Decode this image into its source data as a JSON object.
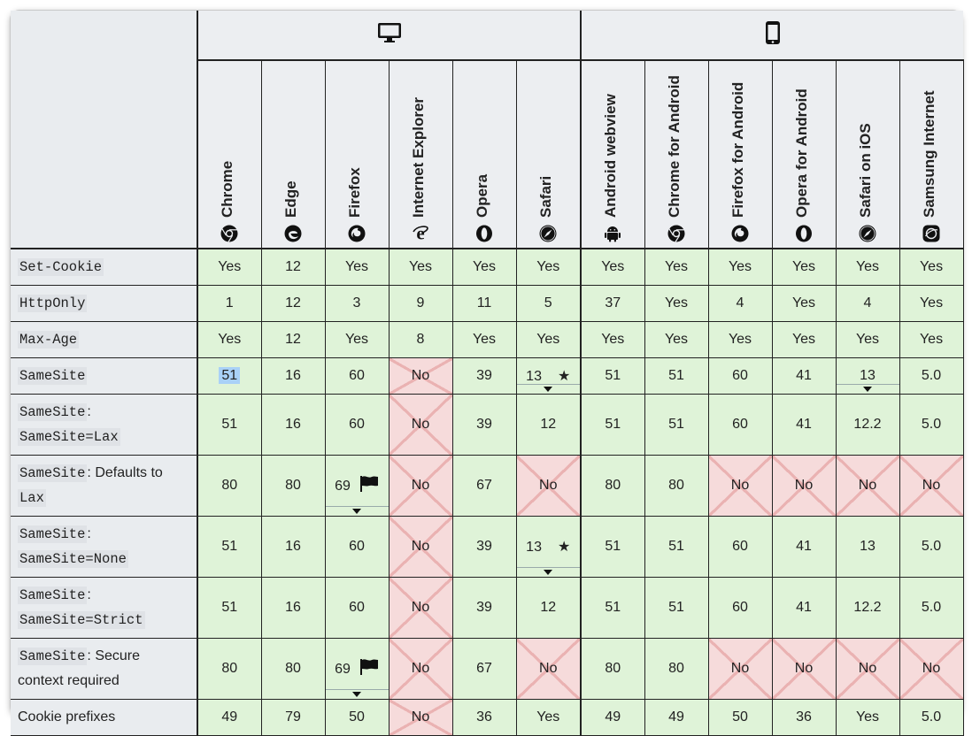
{
  "platforms": [
    {
      "name": "desktop-icon",
      "span": 6
    },
    {
      "name": "mobile-icon",
      "span": 6
    }
  ],
  "browsers": [
    {
      "name": "Chrome",
      "icon": "chrome-icon"
    },
    {
      "name": "Edge",
      "icon": "edge-icon"
    },
    {
      "name": "Firefox",
      "icon": "firefox-icon"
    },
    {
      "name": "Internet Explorer",
      "icon": "ie-icon"
    },
    {
      "name": "Opera",
      "icon": "opera-icon"
    },
    {
      "name": "Safari",
      "icon": "safari-icon"
    },
    {
      "name": "Android webview",
      "icon": "android-icon"
    },
    {
      "name": "Chrome for Android",
      "icon": "chrome-icon"
    },
    {
      "name": "Firefox for Android",
      "icon": "firefox-icon"
    },
    {
      "name": "Opera for Android",
      "icon": "opera-icon"
    },
    {
      "name": "Safari on iOS",
      "icon": "safari-icon"
    },
    {
      "name": "Samsung Internet",
      "icon": "samsung-icon"
    }
  ],
  "features": [
    {
      "parts": [
        {
          "code": "Set-Cookie"
        }
      ],
      "cells": [
        {
          "v": "Yes",
          "s": "y"
        },
        {
          "v": "12",
          "s": "y"
        },
        {
          "v": "Yes",
          "s": "y"
        },
        {
          "v": "Yes",
          "s": "y"
        },
        {
          "v": "Yes",
          "s": "y"
        },
        {
          "v": "Yes",
          "s": "y"
        },
        {
          "v": "Yes",
          "s": "y"
        },
        {
          "v": "Yes",
          "s": "y"
        },
        {
          "v": "Yes",
          "s": "y"
        },
        {
          "v": "Yes",
          "s": "y"
        },
        {
          "v": "Yes",
          "s": "y"
        },
        {
          "v": "Yes",
          "s": "y"
        }
      ]
    },
    {
      "parts": [
        {
          "code": "HttpOnly"
        }
      ],
      "cells": [
        {
          "v": "1",
          "s": "y"
        },
        {
          "v": "12",
          "s": "y"
        },
        {
          "v": "3",
          "s": "y"
        },
        {
          "v": "9",
          "s": "y"
        },
        {
          "v": "11",
          "s": "y"
        },
        {
          "v": "5",
          "s": "y"
        },
        {
          "v": "37",
          "s": "y"
        },
        {
          "v": "Yes",
          "s": "y"
        },
        {
          "v": "4",
          "s": "y"
        },
        {
          "v": "Yes",
          "s": "y"
        },
        {
          "v": "4",
          "s": "y"
        },
        {
          "v": "Yes",
          "s": "y"
        }
      ]
    },
    {
      "parts": [
        {
          "code": "Max-Age"
        }
      ],
      "cells": [
        {
          "v": "Yes",
          "s": "y"
        },
        {
          "v": "12",
          "s": "y"
        },
        {
          "v": "Yes",
          "s": "y"
        },
        {
          "v": "8",
          "s": "y"
        },
        {
          "v": "Yes",
          "s": "y"
        },
        {
          "v": "Yes",
          "s": "y"
        },
        {
          "v": "Yes",
          "s": "y"
        },
        {
          "v": "Yes",
          "s": "y"
        },
        {
          "v": "Yes",
          "s": "y"
        },
        {
          "v": "Yes",
          "s": "y"
        },
        {
          "v": "Yes",
          "s": "y"
        },
        {
          "v": "Yes",
          "s": "y"
        }
      ]
    },
    {
      "parts": [
        {
          "code": "SameSite"
        }
      ],
      "cells": [
        {
          "v": "51",
          "s": "y",
          "hl": true
        },
        {
          "v": "16",
          "s": "y"
        },
        {
          "v": "60",
          "s": "y"
        },
        {
          "v": "No",
          "s": "n"
        },
        {
          "v": "39",
          "s": "y"
        },
        {
          "v": "13",
          "s": "y",
          "note": "★",
          "drop": true
        },
        {
          "v": "51",
          "s": "y"
        },
        {
          "v": "51",
          "s": "y"
        },
        {
          "v": "60",
          "s": "y"
        },
        {
          "v": "41",
          "s": "y"
        },
        {
          "v": "13",
          "s": "y",
          "drop": true
        },
        {
          "v": "5.0",
          "s": "y"
        }
      ]
    },
    {
      "parts": [
        {
          "code": "SameSite"
        },
        {
          "text": ": "
        },
        {
          "code": "SameSite=Lax"
        }
      ],
      "cells": [
        {
          "v": "51",
          "s": "y"
        },
        {
          "v": "16",
          "s": "y"
        },
        {
          "v": "60",
          "s": "y"
        },
        {
          "v": "No",
          "s": "n"
        },
        {
          "v": "39",
          "s": "y"
        },
        {
          "v": "12",
          "s": "y"
        },
        {
          "v": "51",
          "s": "y"
        },
        {
          "v": "51",
          "s": "y"
        },
        {
          "v": "60",
          "s": "y"
        },
        {
          "v": "41",
          "s": "y"
        },
        {
          "v": "12.2",
          "s": "y"
        },
        {
          "v": "5.0",
          "s": "y"
        }
      ]
    },
    {
      "parts": [
        {
          "code": "SameSite"
        },
        {
          "text": ": Defaults to "
        },
        {
          "code": "Lax"
        }
      ],
      "cells": [
        {
          "v": "80",
          "s": "y"
        },
        {
          "v": "80",
          "s": "y"
        },
        {
          "v": "69",
          "s": "y",
          "flag": true,
          "drop": true
        },
        {
          "v": "No",
          "s": "n"
        },
        {
          "v": "67",
          "s": "y"
        },
        {
          "v": "No",
          "s": "n"
        },
        {
          "v": "80",
          "s": "y"
        },
        {
          "v": "80",
          "s": "y"
        },
        {
          "v": "No",
          "s": "n"
        },
        {
          "v": "No",
          "s": "n"
        },
        {
          "v": "No",
          "s": "n"
        },
        {
          "v": "No",
          "s": "n"
        }
      ]
    },
    {
      "parts": [
        {
          "code": "SameSite"
        },
        {
          "text": ": "
        },
        {
          "code": "SameSite=None"
        }
      ],
      "cells": [
        {
          "v": "51",
          "s": "y"
        },
        {
          "v": "16",
          "s": "y"
        },
        {
          "v": "60",
          "s": "y"
        },
        {
          "v": "No",
          "s": "n"
        },
        {
          "v": "39",
          "s": "y"
        },
        {
          "v": "13",
          "s": "y",
          "note": "★",
          "drop": true
        },
        {
          "v": "51",
          "s": "y"
        },
        {
          "v": "51",
          "s": "y"
        },
        {
          "v": "60",
          "s": "y"
        },
        {
          "v": "41",
          "s": "y"
        },
        {
          "v": "13",
          "s": "y"
        },
        {
          "v": "5.0",
          "s": "y"
        }
      ]
    },
    {
      "parts": [
        {
          "code": "SameSite"
        },
        {
          "text": ": "
        },
        {
          "code": "SameSite=Strict"
        }
      ],
      "cells": [
        {
          "v": "51",
          "s": "y"
        },
        {
          "v": "16",
          "s": "y"
        },
        {
          "v": "60",
          "s": "y"
        },
        {
          "v": "No",
          "s": "n"
        },
        {
          "v": "39",
          "s": "y"
        },
        {
          "v": "12",
          "s": "y"
        },
        {
          "v": "51",
          "s": "y"
        },
        {
          "v": "51",
          "s": "y"
        },
        {
          "v": "60",
          "s": "y"
        },
        {
          "v": "41",
          "s": "y"
        },
        {
          "v": "12.2",
          "s": "y"
        },
        {
          "v": "5.0",
          "s": "y"
        }
      ]
    },
    {
      "parts": [
        {
          "code": "SameSite"
        },
        {
          "text": ": Secure context required"
        }
      ],
      "cells": [
        {
          "v": "80",
          "s": "y"
        },
        {
          "v": "80",
          "s": "y"
        },
        {
          "v": "69",
          "s": "y",
          "flag": true,
          "drop": true
        },
        {
          "v": "No",
          "s": "n"
        },
        {
          "v": "67",
          "s": "y"
        },
        {
          "v": "No",
          "s": "n"
        },
        {
          "v": "80",
          "s": "y"
        },
        {
          "v": "80",
          "s": "y"
        },
        {
          "v": "No",
          "s": "n"
        },
        {
          "v": "No",
          "s": "n"
        },
        {
          "v": "No",
          "s": "n"
        },
        {
          "v": "No",
          "s": "n"
        }
      ]
    },
    {
      "parts": [
        {
          "text": "Cookie prefixes"
        }
      ],
      "cells": [
        {
          "v": "49",
          "s": "y"
        },
        {
          "v": "79",
          "s": "y"
        },
        {
          "v": "50",
          "s": "y"
        },
        {
          "v": "No",
          "s": "n"
        },
        {
          "v": "36",
          "s": "y"
        },
        {
          "v": "Yes",
          "s": "y"
        },
        {
          "v": "49",
          "s": "y"
        },
        {
          "v": "49",
          "s": "y"
        },
        {
          "v": "50",
          "s": "y"
        },
        {
          "v": "36",
          "s": "y"
        },
        {
          "v": "Yes",
          "s": "y"
        },
        {
          "v": "5.0",
          "s": "y"
        }
      ]
    }
  ],
  "colors": {
    "supported": "#dff3d8",
    "unsupported": "#f6dbdb",
    "header": "#eceef1"
  }
}
